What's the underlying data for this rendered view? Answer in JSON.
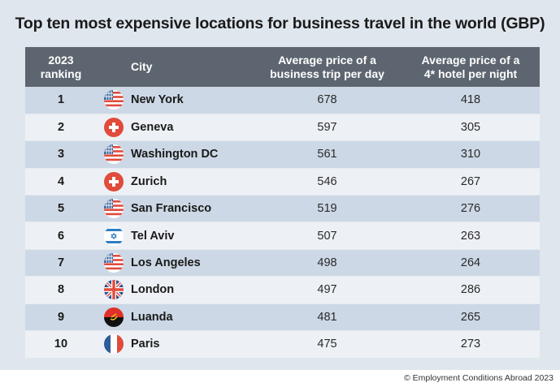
{
  "title": "Top ten most expensive locations for business travel in the world (GBP)",
  "table": {
    "headers": {
      "ranking": [
        "2023",
        "ranking"
      ],
      "city": "City",
      "trip": [
        "Average price of a",
        "business trip per day"
      ],
      "hotel": [
        "Average price of a",
        "4* hotel per night"
      ]
    },
    "rows": [
      {
        "rank": "1",
        "flag": "usa-flag-icon",
        "city": "New York",
        "trip": "678",
        "hotel": "418"
      },
      {
        "rank": "2",
        "flag": "switzerland-flag-icon",
        "city": "Geneva",
        "trip": "597",
        "hotel": "305"
      },
      {
        "rank": "3",
        "flag": "usa-flag-icon",
        "city": "Washington DC",
        "trip": "561",
        "hotel": "310"
      },
      {
        "rank": "4",
        "flag": "switzerland-flag-icon",
        "city": "Zurich",
        "trip": "546",
        "hotel": "267"
      },
      {
        "rank": "5",
        "flag": "usa-flag-icon",
        "city": "San Francisco",
        "trip": "519",
        "hotel": "276"
      },
      {
        "rank": "6",
        "flag": "israel-flag-icon",
        "city": "Tel Aviv",
        "trip": "507",
        "hotel": "263"
      },
      {
        "rank": "7",
        "flag": "usa-flag-icon",
        "city": "Los Angeles",
        "trip": "498",
        "hotel": "264"
      },
      {
        "rank": "8",
        "flag": "uk-flag-icon",
        "city": "London",
        "trip": "497",
        "hotel": "286"
      },
      {
        "rank": "9",
        "flag": "angola-flag-icon",
        "city": "Luanda",
        "trip": "481",
        "hotel": "265"
      },
      {
        "rank": "10",
        "flag": "france-flag-icon",
        "city": "Paris",
        "trip": "475",
        "hotel": "273"
      }
    ]
  },
  "footer": "© Employment Conditions Abroad 2023",
  "colors": {
    "header_bg": "#5d6670",
    "row_odd": "#ccd8e5",
    "row_even": "#edf1f5",
    "panel_bg": "#dfe6ee"
  }
}
